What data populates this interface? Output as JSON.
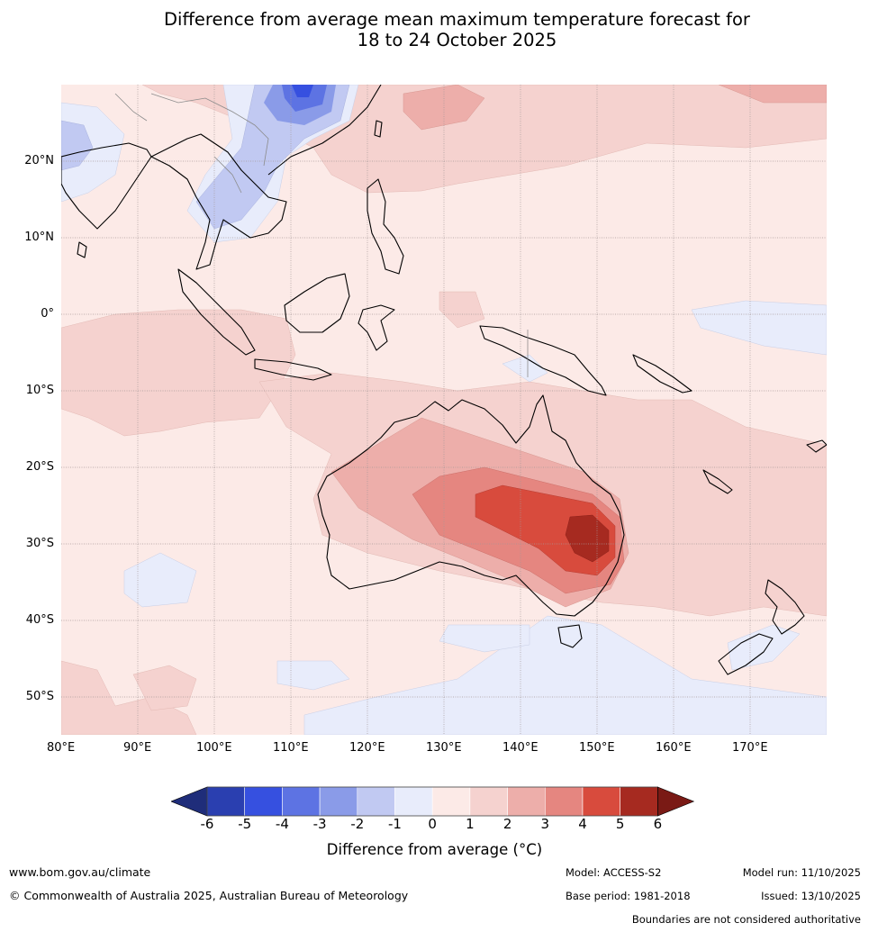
{
  "header": {
    "title_line1": "Difference from average mean maximum temperature forecast for",
    "title_line2": "18 to 24 October 2025"
  },
  "map": {
    "lat_ticks": [
      "20°N",
      "10°N",
      "0°",
      "10°S",
      "20°S",
      "30°S",
      "40°S",
      "50°S"
    ],
    "lon_ticks": [
      "80°E",
      "90°E",
      "100°E",
      "110°E",
      "120°E",
      "130°E",
      "140°E",
      "150°E",
      "160°E",
      "170°E"
    ],
    "extent": {
      "lon_min": 80,
      "lon_max": 180,
      "lat_min": -55,
      "lat_max": 30
    }
  },
  "colorbar": {
    "labels": [
      "-6",
      "-5",
      "-4",
      "-3",
      "-2",
      "-1",
      "0",
      "1",
      "2",
      "3",
      "4",
      "5",
      "6"
    ],
    "colors": [
      "#1f2d7a",
      "#2a3fb0",
      "#3650e0",
      "#5d73e3",
      "#8a9be8",
      "#c1c9f2",
      "#e8ecfb",
      "#fceae7",
      "#f5d2cf",
      "#edaeaa",
      "#e58680",
      "#d84b3d",
      "#a62a20",
      "#7a1a15"
    ],
    "title": "Difference from average (°C)"
  },
  "footer": {
    "website": "www.bom.gov.au/climate",
    "copyright": "© Commonwealth of Australia 2025, Australian Bureau of Meteorology",
    "model": "Model: ACCESS-S2",
    "base_period": "Base period: 1981-2018",
    "model_run": "Model run: 11/10/2025",
    "issued": "Issued: 13/10/2025",
    "disclaimer": "Boundaries are not considered authoritative"
  }
}
